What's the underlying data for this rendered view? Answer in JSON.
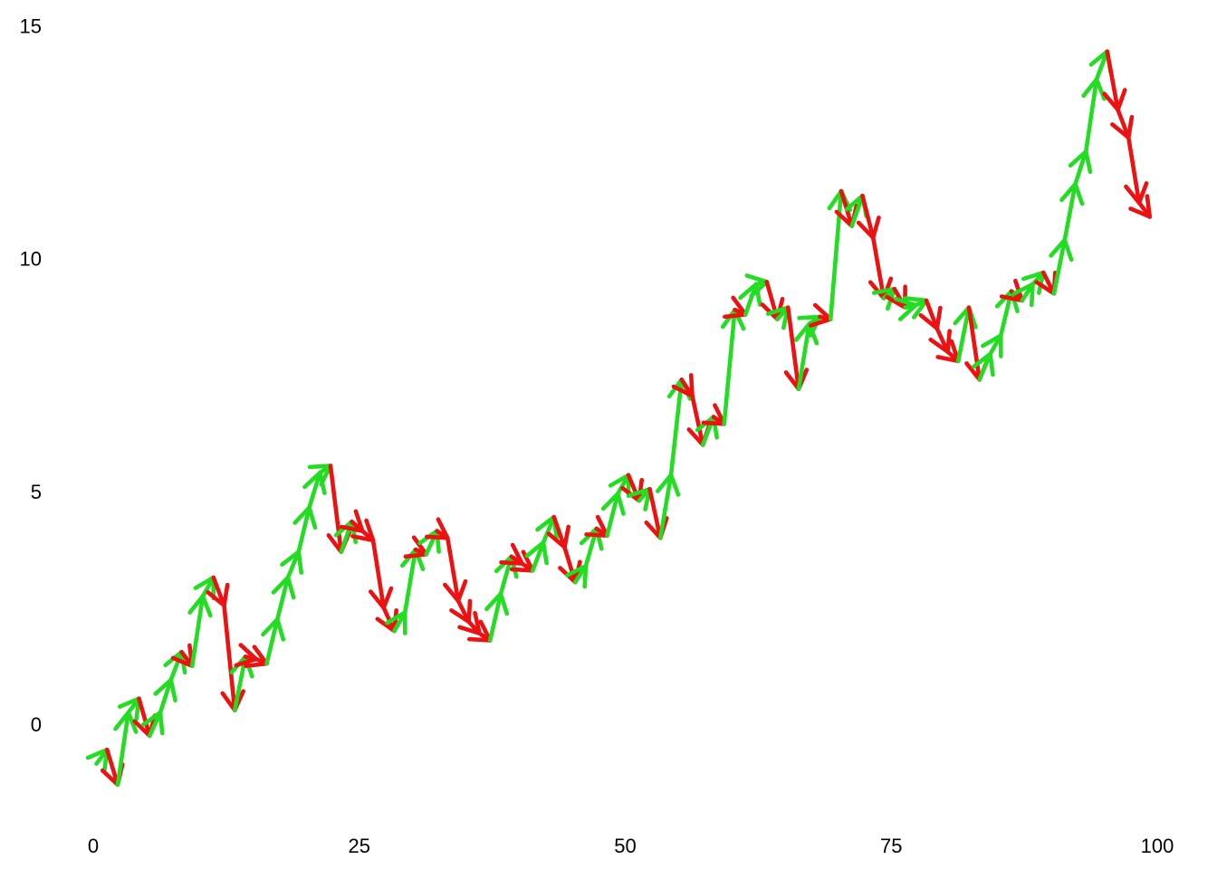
{
  "chart_data": {
    "type": "line",
    "subtype": "arrow-walk",
    "description": "Random-walk path drawn as one arrow per step; arrow points from value[i] to value[i+1]; green arrow = step up, red arrow = step down; no axis lines or grid, only tick numbers",
    "x_start": 0,
    "x_step": 1,
    "values": [
      -0.85,
      -0.55,
      -1.3,
      0.25,
      0.55,
      -0.25,
      0.25,
      0.95,
      1.55,
      1.25,
      2.75,
      3.15,
      2.55,
      0.3,
      1.45,
      1.4,
      1.3,
      2.25,
      3.15,
      3.7,
      4.65,
      5.4,
      5.55,
      3.7,
      4.35,
      4.15,
      3.95,
      2.5,
      2.0,
      2.4,
      3.75,
      3.65,
      4.15,
      4.0,
      2.65,
      2.2,
      1.95,
      1.8,
      2.8,
      3.6,
      3.45,
      3.3,
      3.9,
      4.45,
      3.8,
      3.05,
      3.4,
      4.2,
      4.05,
      4.95,
      5.35,
      4.8,
      5.05,
      4.0,
      5.35,
      7.4,
      7.05,
      6.0,
      6.6,
      6.45,
      8.9,
      8.8,
      9.45,
      9.5,
      8.7,
      8.95,
      7.2,
      8.6,
      8.75,
      8.7,
      11.45,
      10.7,
      11.35,
      10.45,
      9.15,
      9.35,
      8.95,
      9.0,
      9.1,
      8.5,
      8.0,
      7.8,
      8.95,
      7.4,
      7.95,
      8.35,
      9.3,
      9.1,
      9.45,
      9.7,
      9.25,
      10.4,
      11.6,
      12.3,
      13.85,
      14.45,
      13.2,
      12.6,
      11.2,
      10.9
    ],
    "x_ticks": [
      "0",
      "25",
      "50",
      "75",
      "100"
    ],
    "x_tick_values": [
      0,
      25,
      50,
      75,
      100
    ],
    "y_ticks": [
      "0",
      "5",
      "10",
      "15"
    ],
    "y_tick_values": [
      0,
      5,
      10,
      15
    ],
    "xlim": [
      0,
      100
    ],
    "ylim": [
      -1.5,
      15
    ],
    "grid": false,
    "legend": null,
    "up_color": "#22dd22",
    "down_color": "#ee1111",
    "text_color": "#000000",
    "background_color": "#ffffff"
  }
}
